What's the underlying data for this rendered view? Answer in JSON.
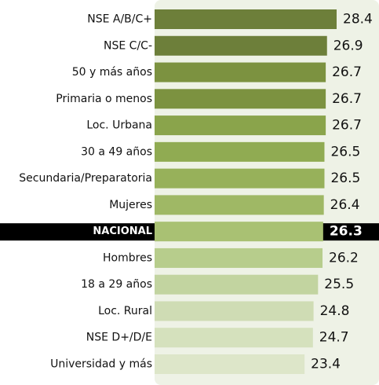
{
  "chart_data": {
    "type": "bar",
    "orientation": "horizontal",
    "title": "",
    "xlabel": "",
    "ylabel": "",
    "xlim": [
      0,
      28.4
    ],
    "grid": false,
    "legend": "none",
    "categories": [
      "NSE A/B/C+",
      "NSE C/C-",
      "50 y más años",
      "Primaria o menos",
      "Loc. Urbana",
      "30 a 49 años",
      "Secundaria/Preparatoria",
      "Mujeres",
      "NACIONAL",
      "Hombres",
      "18 a 29 años",
      "Loc. Rural",
      "NSE D+/D/E",
      "Universidad y más"
    ],
    "values": [
      28.4,
      26.9,
      26.7,
      26.7,
      26.7,
      26.5,
      26.5,
      26.4,
      26.3,
      26.2,
      25.5,
      24.8,
      24.7,
      23.4
    ],
    "value_labels": [
      "28.4",
      "26.9",
      "26.7",
      "26.7",
      "26.7",
      "26.5",
      "26.5",
      "26.4",
      "26.3",
      "26.2",
      "25.5",
      "24.8",
      "24.7",
      "23.4"
    ],
    "highlight_category": "NACIONAL",
    "colors": {
      "background_panel": "#eef2e6",
      "highlight_band": "#000000",
      "highlight_text": "#ffffff",
      "label_text": "#111111",
      "bars": [
        "#6d7f3a",
        "#6d7f3a",
        "#7c9240",
        "#7c9240",
        "#8aa44b",
        "#90ab52",
        "#97b15a",
        "#9fb865",
        "#a9c173",
        "#b7cd8c",
        "#c2d4a0",
        "#cfdcb4",
        "#d5e1bd",
        "#dde6c9"
      ]
    }
  }
}
